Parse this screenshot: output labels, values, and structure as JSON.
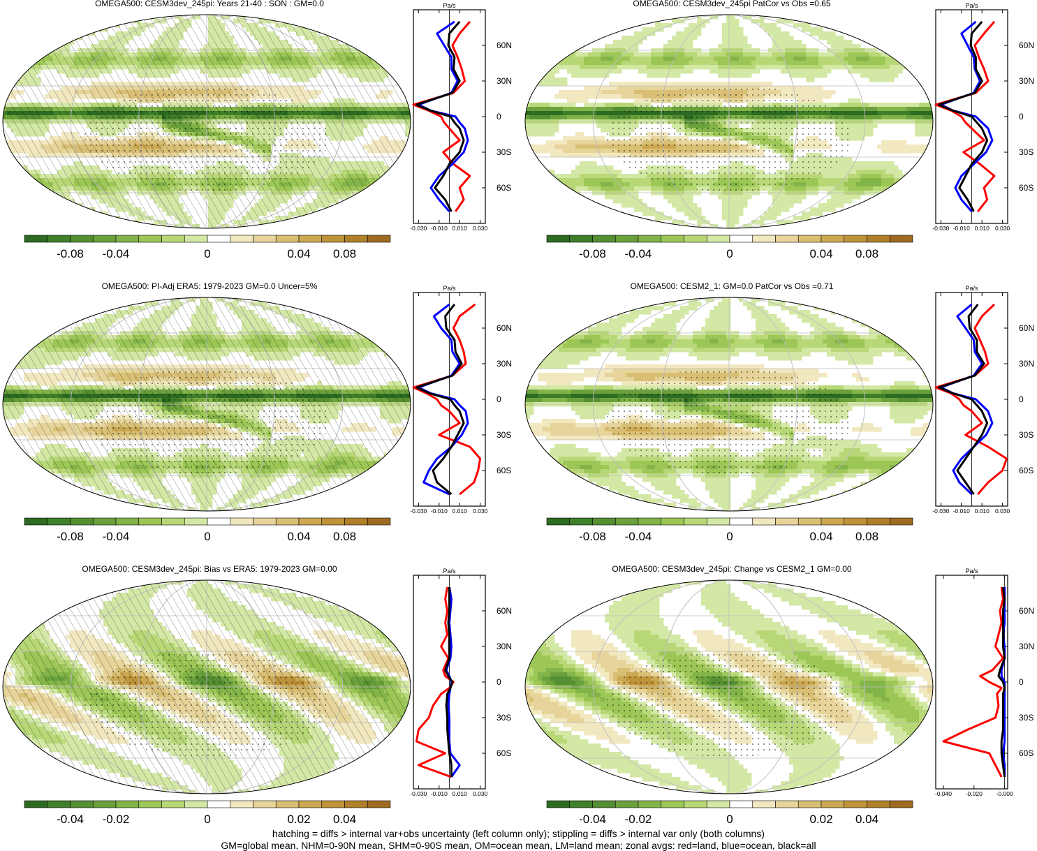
{
  "panels": [
    {
      "title": "OMEGA500: CESM3dev_245pi: Years 21-40 : SON : GM=0.0",
      "colorbar_ticks": [
        "-0.08",
        "-0.04",
        "0",
        "0.04",
        "0.08"
      ],
      "zonal_unit": "Pa/s",
      "zonal_xticks": [
        "-0.030",
        "-0.010",
        "0.010",
        "0.030"
      ],
      "zonal_yticks": [
        "60N",
        "30N",
        "0",
        "30S",
        "60S"
      ],
      "hatching": true
    },
    {
      "title": "OMEGA500: CESM3dev_245pi PatCor vs Obs =0.65",
      "colorbar_ticks": [
        "-0.08",
        "-0.04",
        "0",
        "0.04",
        "0.08"
      ],
      "zonal_unit": "Pa/s",
      "zonal_xticks": [
        "-0.030",
        "-0.010",
        "0.010",
        "0.030"
      ],
      "zonal_yticks": [
        "60N",
        "30N",
        "0",
        "30S",
        "60S"
      ],
      "hatching": false
    },
    {
      "title": "OMEGA500: PI-Adj ERA5: 1979-2023 GM=0.0 Uncer=5%",
      "colorbar_ticks": [
        "-0.08",
        "-0.04",
        "0",
        "0.04",
        "0.08"
      ],
      "zonal_unit": "Pa/s",
      "zonal_xticks": [
        "-0.030",
        "-0.010",
        "0.010",
        "0.030"
      ],
      "zonal_yticks": [
        "60N",
        "30N",
        "0",
        "30S",
        "60S"
      ],
      "hatching": true
    },
    {
      "title": "OMEGA500: CESM2_1: GM=0.0 PatCor vs Obs =0.71",
      "colorbar_ticks": [
        "-0.08",
        "-0.04",
        "0",
        "0.04",
        "0.08"
      ],
      "zonal_unit": "Pa/s",
      "zonal_xticks": [
        "-0.030",
        "-0.010",
        "0.010",
        "0.030"
      ],
      "zonal_yticks": [
        "60N",
        "30N",
        "0",
        "30S",
        "60S"
      ],
      "hatching": false
    },
    {
      "title": "OMEGA500: CESM3dev_245pi: Bias vs ERA5: 1979-2023  GM=0.00",
      "colorbar_ticks": [
        "-0.04",
        "-0.02",
        "0",
        "0.02",
        "0.04"
      ],
      "zonal_unit": "Pa/s",
      "zonal_xticks": [
        "-0.030",
        "-0.010",
        "0.010",
        "0.030"
      ],
      "zonal_yticks": [
        "60N",
        "30N",
        "0",
        "30S",
        "60S"
      ],
      "hatching": true
    },
    {
      "title": "OMEGA500: CESM3dev_245pi: Change vs CESM2_1 GM=0.00",
      "colorbar_ticks": [
        "-0.04",
        "-0.02",
        "0",
        "0.02",
        "0.04"
      ],
      "zonal_unit": "Pa/s",
      "zonal_xticks": [
        "-0.040",
        "-0.020",
        "-0.000"
      ],
      "zonal_yticks": [
        "60N",
        "30N",
        "0",
        "30S",
        "60S"
      ],
      "hatching": false
    }
  ],
  "colors": {
    "scale": [
      "#2e6b22",
      "#3f7f2a",
      "#558f33",
      "#6aa13c",
      "#83b449",
      "#9cc655",
      "#b8d877",
      "#d4e8a6",
      "#ffffff",
      "#f2e8c0",
      "#e6d49a",
      "#d9bf74",
      "#cca852",
      "#be9339",
      "#b07f2a",
      "#9e6b20"
    ],
    "land": "#c8c8c8",
    "zonal_land": "#ff0000",
    "zonal_ocean": "#0000ff",
    "zonal_all": "#000000"
  },
  "chart_data": [
    {
      "type": "heatmap",
      "title": "OMEGA500: CESM3dev_245pi: Years 21-40 : SON : GM=0.0",
      "colorbar_range": [
        -0.1,
        0.1
      ],
      "zonal_profile": {
        "type": "line",
        "unit": "Pa/s",
        "xlim": [
          -0.035,
          0.035
        ],
        "lat": [
          80,
          70,
          60,
          50,
          40,
          30,
          20,
          10,
          5,
          0,
          -5,
          -10,
          -20,
          -30,
          -40,
          -50,
          -60,
          -70,
          -80
        ],
        "series": [
          {
            "name": "land",
            "values": [
              0.02,
              0.01,
              0.003,
              0.008,
              0.012,
              0.015,
              0.004,
              -0.035,
              -0.02,
              -0.008,
              -0.005,
              0.0,
              0.01,
              -0.006,
              0.004,
              0.02,
              0.01,
              0.014,
              0.006
            ]
          },
          {
            "name": "ocean",
            "values": [
              0.005,
              -0.012,
              -0.005,
              0.002,
              0.002,
              0.008,
              0.002,
              -0.03,
              -0.018,
              0.006,
              0.01,
              0.015,
              0.018,
              0.014,
              0.003,
              -0.01,
              -0.018,
              -0.01,
              0.0
            ]
          },
          {
            "name": "all",
            "values": [
              0.01,
              0.0,
              -0.001,
              0.005,
              0.004,
              0.01,
              0.003,
              -0.032,
              -0.018,
              0.001,
              0.005,
              0.01,
              0.014,
              0.01,
              0.0,
              -0.006,
              -0.014,
              -0.004,
              0.002
            ]
          }
        ]
      }
    },
    {
      "type": "heatmap",
      "title": "OMEGA500: CESM3dev_245pi PatCor vs Obs =0.65",
      "colorbar_range": [
        -0.1,
        0.1
      ],
      "zonal_profile": {
        "type": "line",
        "unit": "Pa/s",
        "xlim": [
          -0.035,
          0.035
        ],
        "lat": [
          80,
          70,
          60,
          50,
          40,
          30,
          20,
          10,
          5,
          0,
          -5,
          -10,
          -20,
          -30,
          -40,
          -50,
          -60,
          -70,
          -80
        ],
        "series": [
          {
            "name": "land",
            "values": [
              0.022,
              0.012,
              0.003,
              0.007,
              0.012,
              0.016,
              0.004,
              -0.035,
              -0.02,
              -0.01,
              -0.006,
              0.0,
              0.012,
              -0.008,
              0.008,
              0.022,
              0.012,
              0.015,
              0.006
            ]
          },
          {
            "name": "ocean",
            "values": [
              0.004,
              -0.01,
              -0.004,
              0.002,
              0.003,
              0.008,
              0.002,
              -0.03,
              -0.018,
              0.004,
              0.01,
              0.016,
              0.02,
              0.014,
              0.002,
              -0.01,
              -0.016,
              -0.01,
              0.0
            ]
          },
          {
            "name": "all",
            "values": [
              0.01,
              0.0,
              -0.001,
              0.004,
              0.004,
              0.01,
              0.003,
              -0.032,
              -0.018,
              0.0,
              0.005,
              0.01,
              0.015,
              0.01,
              0.0,
              -0.006,
              -0.012,
              -0.004,
              0.002
            ]
          }
        ]
      }
    },
    {
      "type": "heatmap",
      "title": "OMEGA500: PI-Adj ERA5: 1979-2023 GM=0.0 Uncer=5%",
      "colorbar_range": [
        -0.1,
        0.1
      ],
      "zonal_profile": {
        "type": "line",
        "unit": "Pa/s",
        "xlim": [
          -0.035,
          0.035
        ],
        "lat": [
          80,
          70,
          60,
          50,
          40,
          30,
          20,
          10,
          5,
          0,
          -5,
          -10,
          -20,
          -30,
          -40,
          -50,
          -60,
          -70,
          -80
        ],
        "series": [
          {
            "name": "land",
            "values": [
              0.025,
              0.01,
              0.004,
              0.01,
              0.014,
              0.016,
              0.003,
              -0.035,
              -0.022,
              -0.012,
              -0.008,
              0.0,
              0.01,
              -0.01,
              0.02,
              0.03,
              0.028,
              0.024,
              0.01
            ]
          },
          {
            "name": "ocean",
            "values": [
              0.0,
              -0.015,
              -0.008,
              0.002,
              0.003,
              0.01,
              0.002,
              -0.03,
              -0.018,
              0.005,
              0.01,
              0.016,
              0.018,
              0.012,
              0.002,
              -0.012,
              -0.02,
              -0.025,
              0.0
            ]
          },
          {
            "name": "all",
            "values": [
              0.005,
              -0.004,
              -0.003,
              0.005,
              0.006,
              0.012,
              0.003,
              -0.032,
              -0.019,
              0.001,
              0.005,
              0.01,
              0.014,
              0.008,
              0.002,
              -0.006,
              -0.016,
              -0.012,
              0.002
            ]
          }
        ]
      }
    },
    {
      "type": "heatmap",
      "title": "OMEGA500: CESM2_1: GM=0.0 PatCor vs Obs =0.71",
      "colorbar_range": [
        -0.1,
        0.1
      ],
      "zonal_profile": {
        "type": "line",
        "unit": "Pa/s",
        "xlim": [
          -0.035,
          0.035
        ],
        "lat": [
          80,
          70,
          60,
          50,
          40,
          30,
          20,
          10,
          5,
          0,
          -5,
          -10,
          -20,
          -30,
          -40,
          -50,
          -60,
          -70,
          -80
        ],
        "series": [
          {
            "name": "land",
            "values": [
              0.022,
              0.01,
              0.003,
              0.008,
              0.013,
              0.016,
              0.003,
              -0.035,
              -0.02,
              -0.012,
              -0.008,
              0.0,
              0.01,
              -0.006,
              0.016,
              0.034,
              0.03,
              0.016,
              0.006
            ]
          },
          {
            "name": "ocean",
            "values": [
              0.0,
              -0.014,
              -0.006,
              0.002,
              0.003,
              0.01,
              0.002,
              -0.03,
              -0.018,
              0.004,
              0.01,
              0.016,
              0.02,
              0.014,
              0.002,
              -0.01,
              -0.018,
              -0.012,
              0.0
            ]
          },
          {
            "name": "all",
            "values": [
              0.006,
              -0.003,
              -0.002,
              0.005,
              0.005,
              0.012,
              0.003,
              -0.032,
              -0.018,
              0.0,
              0.005,
              0.01,
              0.015,
              0.01,
              0.002,
              -0.006,
              -0.014,
              -0.006,
              0.002
            ]
          }
        ]
      }
    },
    {
      "type": "heatmap",
      "title": "OMEGA500: CESM3dev_245pi: Bias vs ERA5: 1979-2023  GM=0.00",
      "colorbar_range": [
        -0.055,
        0.055
      ],
      "zonal_profile": {
        "type": "line",
        "unit": "Pa/s",
        "xlim": [
          -0.035,
          0.035
        ],
        "lat": [
          80,
          70,
          60,
          50,
          40,
          30,
          20,
          10,
          5,
          0,
          -5,
          -10,
          -20,
          -30,
          -40,
          -50,
          -60,
          -70,
          -80
        ],
        "series": [
          {
            "name": "land",
            "values": [
              -0.002,
              -0.004,
              -0.002,
              -0.004,
              -0.002,
              -0.008,
              -0.001,
              -0.006,
              -0.004,
              0.004,
              0.0,
              -0.008,
              -0.016,
              -0.02,
              -0.03,
              -0.032,
              -0.004,
              -0.03,
              0.002
            ]
          },
          {
            "name": "ocean",
            "values": [
              0.0,
              0.002,
              0.001,
              0.0,
              0.001,
              0.002,
              0.001,
              -0.003,
              0.0,
              0.002,
              0.001,
              0.0,
              -0.001,
              0.0,
              0.0,
              0.0,
              0.001,
              0.01,
              0.002
            ]
          },
          {
            "name": "all",
            "values": [
              0.0,
              0.0,
              0.0,
              -0.001,
              0.0,
              0.0,
              0.0,
              -0.004,
              -0.001,
              0.003,
              0.001,
              -0.002,
              -0.003,
              -0.002,
              -0.002,
              -0.001,
              0.0,
              0.002,
              0.002
            ]
          }
        ]
      }
    },
    {
      "type": "heatmap",
      "title": "OMEGA500: CESM3dev_245pi: Change vs CESM2_1 GM=0.00",
      "colorbar_range": [
        -0.055,
        0.055
      ],
      "zonal_profile": {
        "type": "line",
        "unit": "Pa/s",
        "xlim": [
          -0.045,
          0.002
        ],
        "lat": [
          80,
          70,
          60,
          50,
          40,
          30,
          20,
          10,
          5,
          0,
          -5,
          -10,
          -20,
          -30,
          -40,
          -50,
          -60,
          -70,
          -80
        ],
        "series": [
          {
            "name": "land",
            "values": [
              -0.002,
              -0.001,
              -0.003,
              -0.002,
              -0.004,
              -0.006,
              -0.001,
              -0.008,
              -0.016,
              -0.01,
              -0.002,
              -0.005,
              -0.004,
              -0.006,
              -0.024,
              -0.04,
              -0.01,
              -0.006,
              -0.002
            ]
          },
          {
            "name": "ocean",
            "values": [
              0.0,
              0.0,
              0.0,
              0.0,
              -0.001,
              0.0,
              0.0,
              -0.002,
              -0.002,
              0.0,
              0.0,
              0.0,
              0.0,
              0.0,
              0.0,
              0.0,
              -0.001,
              0.0,
              0.0
            ]
          },
          {
            "name": "all",
            "values": [
              -0.001,
              0.0,
              -0.001,
              -0.001,
              -0.001,
              -0.001,
              0.0,
              -0.003,
              -0.004,
              -0.001,
              0.0,
              -0.001,
              -0.001,
              -0.001,
              -0.001,
              -0.002,
              -0.002,
              -0.001,
              0.0
            ]
          }
        ]
      }
    }
  ],
  "notes": [
    "hatching = diffs > internal var+obs uncertainty (left column only); stippling = diffs > internal var only (both columns)",
    "GM=global mean, NHM=0-90N mean, SHM=0-90S mean, OM=ocean mean, LM=land mean; zonal avgs: red=land, blue=ocean, black=all"
  ]
}
